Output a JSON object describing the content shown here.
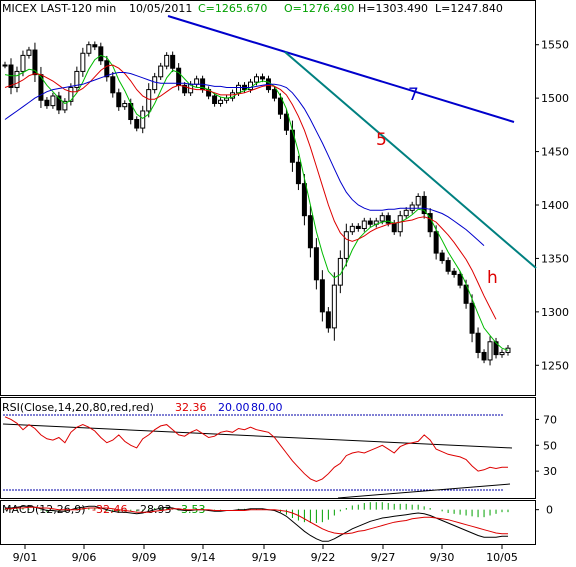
{
  "chart_data": {
    "type": "line",
    "header": {
      "symbol": "MICEX LAST-120 min",
      "date": "10/05/2011",
      "close": "C=1265.670",
      "open": "O=1276.490",
      "high": "H=1303.490",
      "low": "L=1247.840"
    },
    "x_ticks": [
      "9/01",
      "9/06",
      "9/09",
      "9/14",
      "9/19",
      "9/22",
      "9/27",
      "9/30",
      "10/05"
    ],
    "price_axis": {
      "ticks": [
        1550,
        1500,
        1450,
        1400,
        1350,
        1300,
        1250
      ],
      "range": [
        1225,
        1575
      ]
    },
    "price_close": [
      1531,
      1510,
      1525,
      1540,
      1545,
      1522,
      1498,
      1493,
      1502,
      1489,
      1497,
      1510,
      1525,
      1542,
      1550,
      1548,
      1535,
      1520,
      1505,
      1492,
      1495,
      1480,
      1472,
      1488,
      1508,
      1520,
      1530,
      1540,
      1528,
      1512,
      1505,
      1513,
      1518,
      1508,
      1502,
      1495,
      1498,
      1500,
      1505,
      1512,
      1508,
      1515,
      1520,
      1518,
      1508,
      1500,
      1485,
      1470,
      1440,
      1420,
      1390,
      1360,
      1330,
      1300,
      1285,
      1325,
      1350,
      1375,
      1380,
      1378,
      1385,
      1382,
      1385,
      1390,
      1383,
      1375,
      1390,
      1395,
      1400,
      1408,
      1392,
      1375,
      1355,
      1348,
      1338,
      1335,
      1325,
      1308,
      1280,
      1262,
      1255,
      1272,
      1260,
      1262,
      1266
    ],
    "series": [
      {
        "name": "MA short",
        "color": "#00bb00",
        "values": [
          1522,
          1521,
          1521,
          1524,
          1527,
          1526,
          1520,
          1512,
          1506,
          1500,
          1495,
          1498,
          1505,
          1515,
          1527,
          1536,
          1540,
          1538,
          1530,
          1517,
          1507,
          1495,
          1485,
          1481,
          1485,
          1495,
          1507,
          1519,
          1526,
          1524,
          1518,
          1512,
          1510,
          1510,
          1508,
          1504,
          1501,
          1500,
          1501,
          1505,
          1507,
          1510,
          1514,
          1516,
          1515,
          1511,
          1502,
          1490,
          1470,
          1450,
          1425,
          1400,
          1375,
          1355,
          1338,
          1332,
          1335,
          1345,
          1358,
          1368,
          1374,
          1379,
          1382,
          1384,
          1385,
          1383,
          1384,
          1387,
          1391,
          1396,
          1395,
          1388,
          1377,
          1367,
          1356,
          1347,
          1338,
          1326,
          1312,
          1298,
          1285,
          1278,
          1271,
          1266,
          1264
        ]
      },
      {
        "name": "MA medium",
        "color": "#dd0000",
        "values": [
          1510,
          1512,
          1514,
          1517,
          1521,
          1523,
          1522,
          1519,
          1516,
          1512,
          1508,
          1506,
          1506,
          1509,
          1514,
          1520,
          1526,
          1530,
          1531,
          1528,
          1523,
          1516,
          1508,
          1502,
          1499,
          1499,
          1502,
          1506,
          1510,
          1512,
          1511,
          1509,
          1508,
          1508,
          1507,
          1505,
          1503,
          1503,
          1503,
          1504,
          1505,
          1507,
          1509,
          1511,
          1512,
          1511,
          1508,
          1503,
          1494,
          1483,
          1470,
          1454,
          1436,
          1418,
          1400,
          1385,
          1374,
          1368,
          1366,
          1368,
          1371,
          1375,
          1378,
          1380,
          1382,
          1383,
          1384,
          1385,
          1386,
          1388,
          1389,
          1387,
          1384,
          1378,
          1372,
          1365,
          1357,
          1349,
          1339,
          1327,
          1315,
          1304,
          1293
        ]
      },
      {
        "name": "MA long",
        "color": "#0000cc",
        "values": [
          1480,
          1484,
          1488,
          1492,
          1496,
          1500,
          1503,
          1506,
          1508,
          1509,
          1510,
          1511,
          1512,
          1513,
          1515,
          1517,
          1519,
          1521,
          1523,
          1524,
          1524,
          1523,
          1521,
          1519,
          1517,
          1515,
          1514,
          1514,
          1514,
          1514,
          1514,
          1513,
          1513,
          1513,
          1512,
          1511,
          1511,
          1510,
          1510,
          1510,
          1510,
          1510,
          1511,
          1512,
          1513,
          1513,
          1512,
          1510,
          1505,
          1498,
          1490,
          1480,
          1469,
          1458,
          1446,
          1434,
          1422,
          1412,
          1405,
          1400,
          1397,
          1395,
          1395,
          1395,
          1396,
          1396,
          1397,
          1397,
          1397,
          1397,
          1397,
          1396,
          1394,
          1392,
          1389,
          1385,
          1381,
          1377,
          1372,
          1367,
          1362
        ]
      }
    ],
    "trendline_labels": [
      "7",
      "5",
      "h"
    ],
    "rsi": {
      "label": "RSI(Close,14,20,80,red,red)",
      "value": "32.36",
      "lower": "20.00",
      "upper": "80.00",
      "ticks": [
        70,
        50,
        30
      ],
      "range": [
        10,
        85
      ],
      "values": [
        72,
        70,
        67,
        62,
        66,
        63,
        58,
        55,
        54,
        56,
        52,
        60,
        64,
        66,
        64,
        61,
        56,
        52,
        54,
        58,
        53,
        50,
        48,
        55,
        58,
        62,
        65,
        66,
        62,
        58,
        57,
        60,
        62,
        59,
        56,
        57,
        60,
        61,
        60,
        63,
        62,
        64,
        62,
        61,
        60,
        56,
        50,
        44,
        38,
        33,
        28,
        24,
        22,
        24,
        28,
        33,
        36,
        42,
        44,
        45,
        44,
        46,
        48,
        50,
        47,
        44,
        49,
        51,
        52,
        53,
        58,
        54,
        47,
        45,
        43,
        42,
        41,
        39,
        34,
        30,
        31,
        33,
        32,
        33,
        33
      ]
    },
    "macd": {
      "label": "MACD(12,26,9)",
      "value": "-32.46",
      "signal": "-28.93",
      "hist": "-3.53",
      "ticks": [
        0
      ],
      "range": [
        -40,
        8
      ],
      "macd": [
        2,
        2,
        3,
        4,
        4,
        3,
        1,
        -1,
        -1,
        -2,
        -2,
        0,
        2,
        3,
        4,
        4,
        2,
        0,
        -2,
        -3,
        -3,
        -4,
        -5,
        -4,
        -2,
        0,
        2,
        3,
        2,
        0,
        -1,
        -1,
        0,
        0,
        -1,
        -2,
        -2,
        -1,
        -1,
        0,
        0,
        1,
        1,
        1,
        0,
        -1,
        -4,
        -8,
        -14,
        -20,
        -26,
        -31,
        -35,
        -38,
        -38,
        -35,
        -31,
        -27,
        -23,
        -20,
        -17,
        -14,
        -12,
        -10,
        -9,
        -8,
        -7,
        -6,
        -5,
        -4,
        -5,
        -7,
        -10,
        -13,
        -16,
        -19,
        -22,
        -25,
        -28,
        -31,
        -33,
        -33,
        -33,
        -32,
        -32
      ],
      "signal_line": [
        1,
        1,
        2,
        2,
        3,
        3,
        2,
        2,
        1,
        0,
        0,
        0,
        0,
        1,
        2,
        2,
        2,
        2,
        1,
        0,
        -1,
        -2,
        -3,
        -3,
        -3,
        -2,
        -1,
        0,
        1,
        1,
        0,
        0,
        0,
        0,
        0,
        -1,
        -1,
        -1,
        -1,
        -1,
        -1,
        0,
        0,
        0,
        0,
        0,
        -1,
        -2,
        -4,
        -7,
        -11,
        -15,
        -19,
        -23,
        -26,
        -28,
        -29,
        -29,
        -28,
        -26,
        -25,
        -23,
        -21,
        -19,
        -17,
        -15,
        -14,
        -13,
        -11,
        -10,
        -9,
        -9,
        -10,
        -11,
        -12,
        -14,
        -16,
        -18,
        -20,
        -22,
        -24,
        -26,
        -28,
        -29,
        -29
      ]
    }
  }
}
